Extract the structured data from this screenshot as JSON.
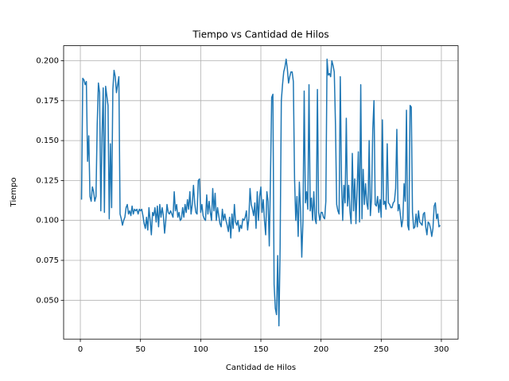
{
  "chart_data": {
    "type": "line",
    "title": "Tiempo vs Cantidad de Hilos",
    "x_label": "Cantidad de Hilos",
    "y_label": "Tiempo",
    "x": [
      1,
      2,
      3,
      4,
      5,
      6,
      7,
      8,
      9,
      10,
      11,
      12,
      13,
      14,
      15,
      16,
      17,
      18,
      19,
      20,
      21,
      22,
      23,
      24,
      25,
      26,
      27,
      28,
      29,
      30,
      31,
      32,
      33,
      34,
      35,
      36,
      37,
      38,
      39,
      40,
      41,
      42,
      43,
      44,
      45,
      46,
      47,
      48,
      49,
      50,
      51,
      52,
      53,
      54,
      55,
      56,
      57,
      58,
      59,
      60,
      61,
      62,
      63,
      64,
      65,
      66,
      67,
      68,
      69,
      70,
      71,
      72,
      73,
      74,
      75,
      76,
      77,
      78,
      79,
      80,
      81,
      82,
      83,
      84,
      85,
      86,
      87,
      88,
      89,
      90,
      91,
      92,
      93,
      94,
      95,
      96,
      97,
      98,
      99,
      100,
      101,
      102,
      103,
      104,
      105,
      106,
      107,
      108,
      109,
      110,
      111,
      112,
      113,
      114,
      115,
      116,
      117,
      118,
      119,
      120,
      121,
      122,
      123,
      124,
      125,
      126,
      127,
      128,
      129,
      130,
      131,
      132,
      133,
      134,
      135,
      136,
      137,
      138,
      139,
      140,
      141,
      142,
      143,
      144,
      145,
      146,
      147,
      148,
      149,
      150,
      151,
      152,
      153,
      154,
      155,
      156,
      157,
      158,
      159,
      160,
      161,
      162,
      163,
      164,
      165,
      166,
      167,
      168,
      169,
      170,
      171,
      172,
      173,
      174,
      175,
      176,
      177,
      178,
      179,
      180,
      181,
      182,
      183,
      184,
      185,
      186,
      187,
      188,
      189,
      190,
      191,
      192,
      193,
      194,
      195,
      196,
      197,
      198,
      199,
      200,
      201,
      202,
      203,
      204,
      205,
      206,
      207,
      208,
      209,
      210,
      211,
      212,
      213,
      214,
      215,
      216,
      217,
      218,
      219,
      220,
      221,
      222,
      223,
      224,
      225,
      226,
      227,
      228,
      229,
      230,
      231,
      232,
      233,
      234,
      235,
      236,
      237,
      238,
      239,
      240,
      241,
      242,
      243,
      244,
      245,
      246,
      247,
      248,
      249,
      250,
      251,
      252,
      253,
      254,
      255,
      256,
      257,
      258,
      259,
      260,
      261,
      262,
      263,
      264,
      265,
      266,
      267,
      268,
      269,
      270,
      271,
      272,
      273,
      274,
      275,
      276,
      277,
      278,
      279,
      280,
      281,
      282,
      283,
      284,
      285,
      286,
      287,
      288,
      289,
      290,
      291,
      292,
      293,
      294,
      295,
      296,
      297,
      298,
      299
    ],
    "series": [
      {
        "color": "#1f77b4",
        "values": [
          0.113,
          0.189,
          0.188,
          0.185,
          0.187,
          0.137,
          0.153,
          0.115,
          0.112,
          0.121,
          0.118,
          0.112,
          0.115,
          0.16,
          0.186,
          0.18,
          0.106,
          0.152,
          0.183,
          0.105,
          0.184,
          0.178,
          0.172,
          0.101,
          0.148,
          0.108,
          0.182,
          0.194,
          0.19,
          0.18,
          0.185,
          0.19,
          0.104,
          0.101,
          0.097,
          0.1,
          0.102,
          0.108,
          0.11,
          0.104,
          0.106,
          0.103,
          0.109,
          0.104,
          0.107,
          0.106,
          0.107,
          0.104,
          0.107,
          0.106,
          0.107,
          0.103,
          0.098,
          0.095,
          0.102,
          0.094,
          0.108,
          0.1,
          0.091,
          0.105,
          0.103,
          0.108,
          0.099,
          0.109,
          0.096,
          0.11,
          0.102,
          0.108,
          0.103,
          0.092,
          0.1,
          0.11,
          0.105,
          0.104,
          0.106,
          0.104,
          0.102,
          0.118,
          0.106,
          0.11,
          0.102,
          0.105,
          0.1,
          0.101,
          0.108,
          0.102,
          0.11,
          0.105,
          0.113,
          0.107,
          0.118,
          0.104,
          0.11,
          0.122,
          0.111,
          0.105,
          0.104,
          0.125,
          0.126,
          0.105,
          0.11,
          0.103,
          0.101,
          0.1,
          0.116,
          0.104,
          0.112,
          0.105,
          0.1,
          0.12,
          0.106,
          0.117,
          0.1,
          0.108,
          0.103,
          0.098,
          0.096,
          0.107,
          0.1,
          0.104,
          0.1,
          0.097,
          0.093,
          0.102,
          0.089,
          0.104,
          0.095,
          0.11,
          0.099,
          0.097,
          0.1,
          0.093,
          0.097,
          0.095,
          0.101,
          0.1,
          0.102,
          0.106,
          0.094,
          0.101,
          0.12,
          0.11,
          0.107,
          0.103,
          0.111,
          0.095,
          0.118,
          0.1,
          0.115,
          0.121,
          0.105,
          0.113,
          0.1,
          0.091,
          0.118,
          0.112,
          0.084,
          0.127,
          0.177,
          0.179,
          0.06,
          0.045,
          0.041,
          0.078,
          0.034,
          0.083,
          0.175,
          0.185,
          0.193,
          0.196,
          0.201,
          0.195,
          0.186,
          0.19,
          0.193,
          0.193,
          0.187,
          0.126,
          0.1,
          0.115,
          0.09,
          0.124,
          0.106,
          0.077,
          0.1,
          0.181,
          0.111,
          0.118,
          0.107,
          0.185,
          0.106,
          0.114,
          0.1,
          0.118,
          0.101,
          0.098,
          0.182,
          0.105,
          0.1,
          0.105,
          0.105,
          0.102,
          0.101,
          0.112,
          0.201,
          0.191,
          0.192,
          0.19,
          0.2,
          0.197,
          0.193,
          0.16,
          0.11,
          0.106,
          0.104,
          0.19,
          0.125,
          0.1,
          0.122,
          0.111,
          0.164,
          0.109,
          0.122,
          0.106,
          0.098,
          0.142,
          0.106,
          0.126,
          0.098,
          0.12,
          0.143,
          0.099,
          0.185,
          0.101,
          0.132,
          0.11,
          0.123,
          0.111,
          0.107,
          0.15,
          0.103,
          0.114,
          0.157,
          0.175,
          0.11,
          0.109,
          0.115,
          0.105,
          0.113,
          0.102,
          0.163,
          0.11,
          0.112,
          0.107,
          0.148,
          0.111,
          0.11,
          0.108,
          0.108,
          0.111,
          0.112,
          0.12,
          0.157,
          0.106,
          0.11,
          0.103,
          0.096,
          0.101,
          0.123,
          0.112,
          0.169,
          0.097,
          0.094,
          0.172,
          0.171,
          0.105,
          0.095,
          0.096,
          0.104,
          0.096,
          0.106,
          0.099,
          0.098,
          0.097,
          0.104,
          0.105,
          0.096,
          0.091,
          0.099,
          0.098,
          0.095,
          0.09,
          0.095,
          0.109,
          0.111,
          0.101,
          0.104,
          0.096,
          0.097
        ]
      }
    ],
    "xlim": [
      -13.9,
      313.9
    ],
    "ylim": [
      0.0257,
      0.2094
    ],
    "xticks": [
      0,
      50,
      100,
      150,
      200,
      250,
      300
    ],
    "yticks": [
      {
        "value": 0.05,
        "label": "0.050"
      },
      {
        "value": 0.075,
        "label": "0.075"
      },
      {
        "value": 0.1,
        "label": "0.100"
      },
      {
        "value": 0.125,
        "label": "0.125"
      },
      {
        "value": 0.15,
        "label": "0.150"
      },
      {
        "value": 0.175,
        "label": "0.175"
      },
      {
        "value": 0.2,
        "label": "0.200"
      }
    ],
    "grid": true
  }
}
